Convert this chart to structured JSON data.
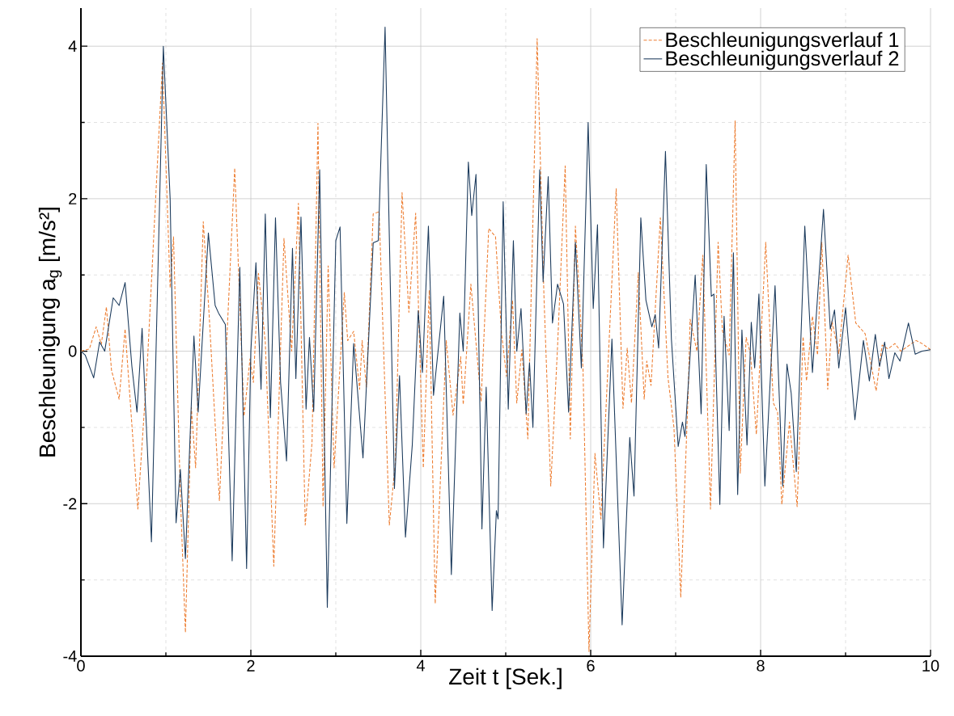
{
  "chart_data": {
    "type": "line",
    "xlabel": "Zeit t [Sek.]",
    "ylabel": "Beschleunigung a$_{g}$ [m/s²]",
    "xlim": [
      0,
      10
    ],
    "ylim": [
      -4,
      4.5
    ],
    "xticks": [
      0,
      2,
      4,
      6,
      8,
      10
    ],
    "yticks": [
      -4,
      -2,
      0,
      2,
      4
    ],
    "grid": true,
    "legend": "top right",
    "marker": "none",
    "series": [
      {
        "name": "Beschleunigungsverlauf 1",
        "color": "#ed7d31",
        "line_style": "dashed",
        "x": [
          0,
          0.1,
          0.18,
          0.24,
          0.3,
          0.36,
          0.45,
          0.52,
          0.67,
          0.78,
          0.96,
          1.05,
          1.09,
          1.17,
          1.23,
          1.3,
          1.35,
          1.44,
          1.51,
          1.63,
          1.81,
          1.92,
          1.99,
          2.03,
          2.09,
          2.17,
          2.27,
          2.39,
          2.48,
          2.56,
          2.64,
          2.72,
          2.79,
          2.85,
          2.91,
          2.98,
          3.1,
          3.14,
          3.21,
          3.28,
          3.31,
          3.36,
          3.44,
          3.51,
          3.63,
          3.7,
          3.78,
          3.86,
          3.94,
          4.03,
          4.1,
          4.17,
          4.3,
          4.38,
          4.47,
          4.5,
          4.59,
          4.71,
          4.8,
          4.88,
          4.95,
          5.01,
          5.08,
          5.13,
          5.19,
          5.26,
          5.37,
          5.45,
          5.53,
          5.61,
          5.7,
          5.76,
          5.82,
          5.87,
          5.91,
          5.98,
          6.05,
          6.12,
          6.3,
          6.38,
          6.43,
          6.48,
          6.56,
          6.63,
          6.66,
          6.71,
          6.82,
          6.91,
          6.98,
          7.06,
          7.15,
          7.17,
          7.25,
          7.32,
          7.41,
          7.5,
          7.55,
          7.63,
          7.7,
          7.76,
          7.83,
          7.88,
          7.95,
          8.06,
          8.15,
          8.2,
          8.25,
          8.34,
          8.43,
          8.5,
          8.54,
          8.61,
          8.67,
          8.72,
          8.79,
          8.84,
          8.92,
          9.03,
          9.12,
          9.23,
          9.36,
          9.43,
          9.5,
          9.58,
          9.65,
          9.83,
          9.9,
          10
        ],
        "values": [
          0,
          0.03,
          0.32,
          0.09,
          0.58,
          -0.25,
          -0.63,
          0.29,
          -2.07,
          -0.2,
          3.78,
          0.83,
          1.5,
          -1.88,
          -3.69,
          -0.74,
          -1.53,
          1.7,
          0.46,
          -1.96,
          2.4,
          -0.85,
          -0.1,
          -0.41,
          1.02,
          0.12,
          -2.82,
          1.48,
          0,
          1.94,
          -2.28,
          -1.2,
          2.99,
          -2.04,
          1.12,
          -1.53,
          0.77,
          0.14,
          0.26,
          -0.5,
          0.14,
          -0.47,
          1.8,
          1.83,
          -2.28,
          -1.47,
          2.08,
          0.51,
          1.81,
          -1.53,
          0.8,
          -3.31,
          0.14,
          -0.84,
          -0.07,
          -0.7,
          0.88,
          -0.66,
          1.61,
          1.5,
          0.24,
          -0.33,
          0.67,
          -0.68,
          0.02,
          -1.15,
          4.1,
          0.72,
          -1.77,
          0.06,
          2.43,
          -1.15,
          1.64,
          0.67,
          -0.25,
          -3.94,
          -1.34,
          -2.2,
          2.13,
          -0.75,
          0.04,
          -0.68,
          1.03,
          -0.63,
          -0.13,
          -0.45,
          1.75,
          -0.35,
          -1.0,
          -3.23,
          -0.45,
          0.42,
          0,
          1.26,
          -2.07,
          1.43,
          0.27,
          -0.05,
          3.02,
          -1.6,
          0.18,
          -0.03,
          -1.09,
          1.43,
          -0.68,
          -0.8,
          -2.01,
          -0.93,
          -2.04,
          0.19,
          -0.39,
          0.46,
          -0.05,
          1.43,
          -0.5,
          0.39,
          -0.03,
          1.26,
          0.37,
          0.23,
          -0.52,
          0.08,
          0.03,
          0.1,
          0,
          0.14,
          0.1,
          0.02
        ]
      },
      {
        "name": "Beschleunigungsverlauf 2",
        "color": "#1b3a5c",
        "line_style": "solid",
        "x": [
          0,
          0.05,
          0.15,
          0.22,
          0.28,
          0.38,
          0.45,
          0.52,
          0.6,
          0.66,
          0.72,
          0.83,
          0.97,
          1.05,
          1.12,
          1.17,
          1.23,
          1.33,
          1.38,
          1.5,
          1.58,
          1.62,
          1.7,
          1.78,
          1.87,
          1.95,
          2.0,
          2.06,
          2.12,
          2.17,
          2.23,
          2.29,
          2.35,
          2.42,
          2.49,
          2.53,
          2.59,
          2.65,
          2.69,
          2.74,
          2.81,
          2.9,
          3.0,
          3.05,
          3.13,
          3.21,
          3.32,
          3.44,
          3.5,
          3.58,
          3.69,
          3.75,
          3.82,
          3.9,
          3.97,
          4.02,
          4.09,
          4.15,
          4.27,
          4.36,
          4.46,
          4.5,
          4.56,
          4.6,
          4.65,
          4.72,
          4.77,
          4.84,
          4.89,
          4.91,
          4.97,
          5.03,
          5.09,
          5.13,
          5.18,
          5.24,
          5.28,
          5.32,
          5.4,
          5.44,
          5.5,
          5.55,
          5.61,
          5.68,
          5.74,
          5.82,
          5.89,
          5.97,
          6.03,
          6.08,
          6.15,
          6.25,
          6.37,
          6.46,
          6.51,
          6.59,
          6.65,
          6.72,
          6.76,
          6.8,
          6.88,
          6.95,
          7.03,
          7.08,
          7.11,
          7.23,
          7.3,
          7.36,
          7.42,
          7.45,
          7.52,
          7.57,
          7.63,
          7.68,
          7.73,
          7.78,
          7.84,
          7.89,
          7.93,
          7.98,
          8.05,
          8.17,
          8.26,
          8.31,
          8.36,
          8.42,
          8.52,
          8.61,
          8.74,
          8.82,
          8.87,
          8.92,
          9.0,
          9.11,
          9.21,
          9.28,
          9.35,
          9.4,
          9.46,
          9.51,
          9.58,
          9.64,
          9.74,
          9.82,
          9.9,
          10
        ],
        "values": [
          0,
          -0.05,
          -0.35,
          0.12,
          0,
          0.7,
          0.6,
          0.9,
          -0.2,
          -0.8,
          0.3,
          -2.5,
          4.0,
          2.0,
          -2.25,
          -1.55,
          -2.72,
          0.2,
          -0.8,
          1.55,
          0.6,
          0.5,
          0.35,
          -2.75,
          1.1,
          -2.85,
          0,
          1.16,
          -0.5,
          1.8,
          -0.87,
          1.75,
          -0.41,
          -1.44,
          1.35,
          -0.36,
          1.76,
          -0.76,
          0.18,
          -0.79,
          2.38,
          -3.36,
          1.45,
          1.63,
          -2.26,
          0.1,
          -1.4,
          1.42,
          1.45,
          4.25,
          -1.8,
          -0.32,
          -2.44,
          -1.23,
          0.53,
          -0.28,
          1.64,
          -0.58,
          0.72,
          -2.93,
          0.5,
          0,
          2.48,
          1.78,
          2.32,
          -2.33,
          -0.47,
          -3.4,
          -2.09,
          -2.2,
          1.96,
          -0.76,
          1.45,
          0,
          0.56,
          -0.82,
          -0.15,
          -1.0,
          2.38,
          0.91,
          2.29,
          0.37,
          0.88,
          0.62,
          -0.8,
          1.43,
          -0.22,
          3.0,
          0.56,
          1.66,
          -2.58,
          0.16,
          -3.59,
          -1.13,
          -1.9,
          1.75,
          0.67,
          0.32,
          0.48,
          0.04,
          2.62,
          0.16,
          -1.25,
          -0.93,
          -1.12,
          1.0,
          -0.82,
          2.45,
          0.72,
          0.75,
          -2.01,
          0.46,
          -1.04,
          1.29,
          -1.88,
          0.28,
          -1.23,
          0.38,
          -0.22,
          0.75,
          -1.77,
          0.86,
          -1.77,
          -0.17,
          -0.55,
          -1.58,
          1.64,
          -0.28,
          1.86,
          0.29,
          0.54,
          -0.22,
          0.57,
          -0.9,
          0.14,
          -0.39,
          0.22,
          -0.2,
          0.12,
          -0.36,
          -0.02,
          -0.13,
          0.37,
          -0.04,
          0,
          0.02
        ]
      }
    ]
  }
}
